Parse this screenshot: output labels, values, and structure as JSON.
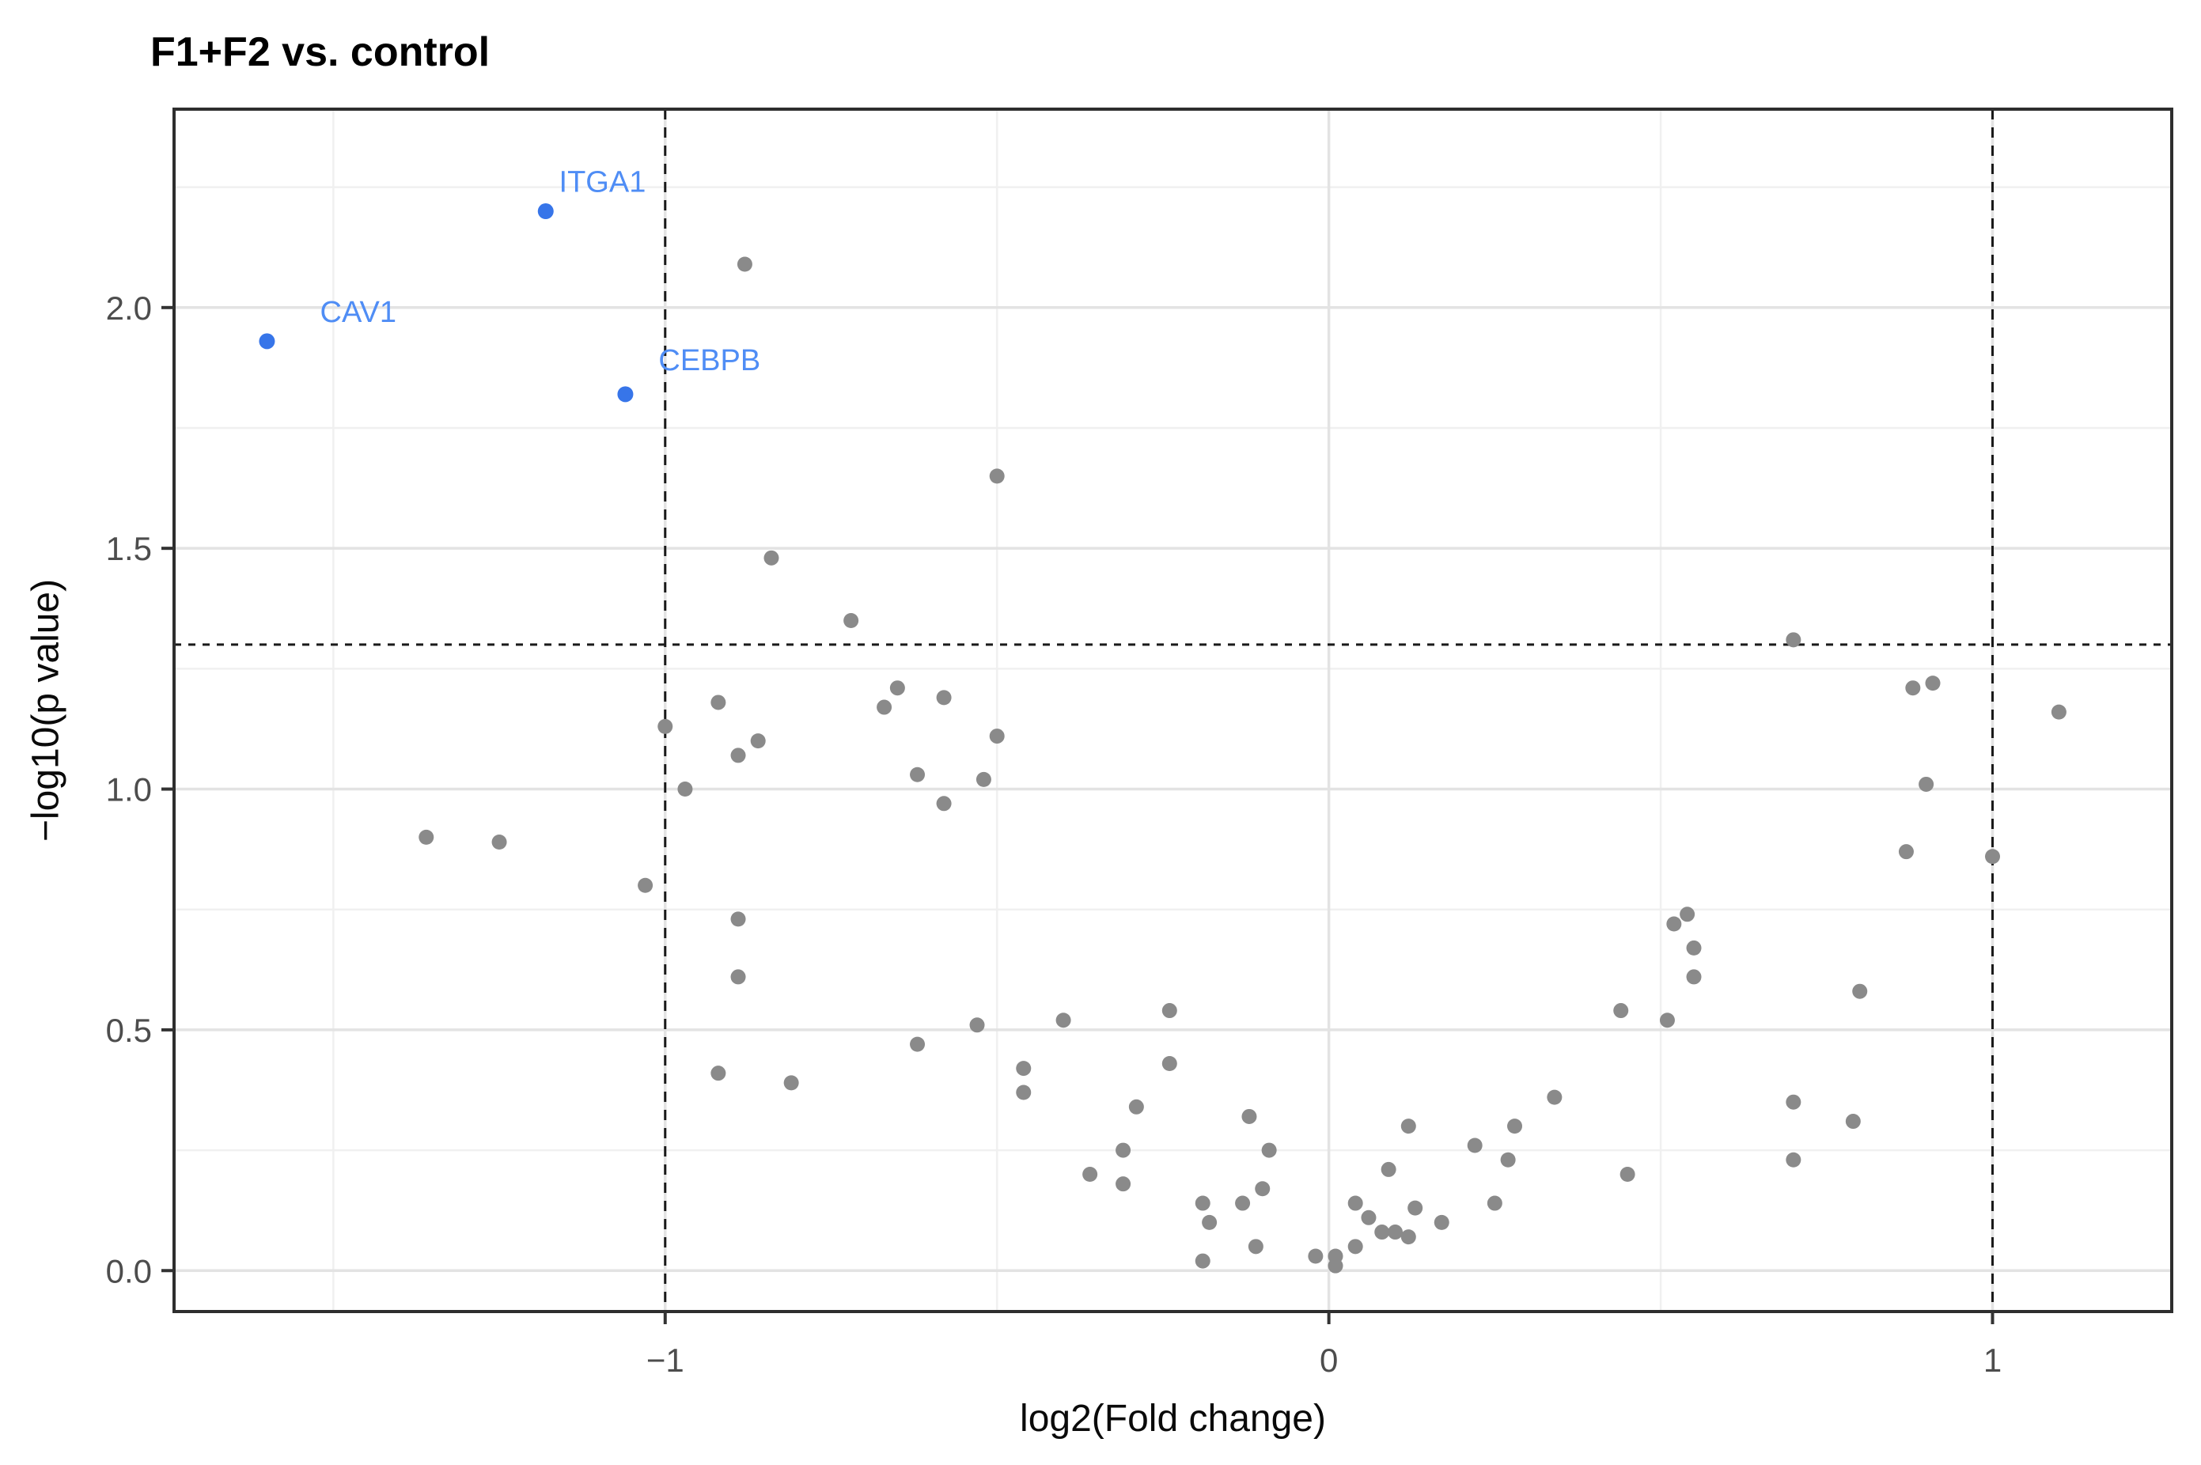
{
  "chart_data": {
    "type": "scatter",
    "title": "F1+F2 vs. control",
    "xlabel": "log2(Fold change)",
    "ylabel": "−log10(p value)",
    "xlim": [
      -1.74,
      1.27
    ],
    "ylim": [
      -0.085,
      2.412
    ],
    "grid": "on",
    "legend": "none",
    "x_ticks": [
      {
        "value": -1,
        "label": "−1"
      },
      {
        "value": 0,
        "label": "0"
      },
      {
        "value": 1,
        "label": "1"
      }
    ],
    "y_ticks": [
      {
        "value": 0.0,
        "label": "0.0"
      },
      {
        "value": 0.5,
        "label": "0.5"
      },
      {
        "value": 1.0,
        "label": "1.0"
      },
      {
        "value": 1.5,
        "label": "1.5"
      },
      {
        "value": 2.0,
        "label": "2.0"
      }
    ],
    "x_minor_grid": [
      -1.5,
      -0.5,
      0.5
    ],
    "y_minor_grid": [
      0.25,
      0.75,
      1.25,
      1.75,
      2.25
    ],
    "threshold_lines": {
      "vertical_x": [
        -1,
        1
      ],
      "horizontal_y": [
        1.3
      ]
    },
    "series": [
      {
        "name": "labeled-significant-genes",
        "point_color": "#3775E9",
        "label_color": "#4F8DF5",
        "points": [
          {
            "gene": "ITGA1",
            "x": -1.18,
            "y": 2.2,
            "label_x": -1.16,
            "label_y": 2.24
          },
          {
            "gene": "CAV1",
            "x": -1.6,
            "y": 1.93,
            "label_x": -1.52,
            "label_y": 1.97
          },
          {
            "gene": "CEBPB",
            "x": -1.06,
            "y": 1.82,
            "label_x": -1.01,
            "label_y": 1.87
          }
        ]
      },
      {
        "name": "background-genes",
        "point_color": "#8A8A8A",
        "points": [
          [
            -0.88,
            2.09
          ],
          [
            -0.5,
            1.65
          ],
          [
            -0.84,
            1.48
          ],
          [
            -0.72,
            1.35
          ],
          [
            0.7,
            1.31
          ],
          [
            -0.65,
            1.21
          ],
          [
            -0.67,
            1.17
          ],
          [
            -0.58,
            1.19
          ],
          [
            -0.92,
            1.18
          ],
          [
            -1.0,
            1.13
          ],
          [
            -0.5,
            1.11
          ],
          [
            -0.86,
            1.1
          ],
          [
            -0.89,
            1.07
          ],
          [
            -0.97,
            1.0
          ],
          [
            -0.62,
            1.03
          ],
          [
            -0.52,
            1.02
          ],
          [
            -0.58,
            0.97
          ],
          [
            0.88,
            1.21
          ],
          [
            0.91,
            1.22
          ],
          [
            1.1,
            1.16
          ],
          [
            0.9,
            1.01
          ],
          [
            -1.03,
            0.8
          ],
          [
            -1.36,
            0.9
          ],
          [
            -1.25,
            0.89
          ],
          [
            -0.89,
            0.73
          ],
          [
            -0.89,
            0.61
          ],
          [
            0.87,
            0.87
          ],
          [
            1.0,
            0.86
          ],
          [
            0.52,
            0.72
          ],
          [
            0.54,
            0.74
          ],
          [
            0.55,
            0.67
          ],
          [
            0.55,
            0.61
          ],
          [
            0.8,
            0.58
          ],
          [
            -0.24,
            0.54
          ],
          [
            -0.53,
            0.51
          ],
          [
            -0.4,
            0.52
          ],
          [
            0.44,
            0.54
          ],
          [
            0.51,
            0.52
          ],
          [
            -0.62,
            0.47
          ],
          [
            -0.92,
            0.41
          ],
          [
            -0.81,
            0.39
          ],
          [
            -0.46,
            0.42
          ],
          [
            -0.46,
            0.37
          ],
          [
            -0.24,
            0.43
          ],
          [
            0.34,
            0.36
          ],
          [
            0.7,
            0.35
          ],
          [
            0.79,
            0.31
          ],
          [
            0.7,
            0.23
          ],
          [
            0.45,
            0.2
          ],
          [
            -0.29,
            0.34
          ],
          [
            -0.12,
            0.32
          ],
          [
            0.12,
            0.3
          ],
          [
            0.28,
            0.3
          ],
          [
            -0.31,
            0.25
          ],
          [
            -0.09,
            0.25
          ],
          [
            0.22,
            0.26
          ],
          [
            0.27,
            0.23
          ],
          [
            -0.36,
            0.2
          ],
          [
            -0.31,
            0.18
          ],
          [
            0.09,
            0.21
          ],
          [
            0.17,
            0.1
          ],
          [
            -0.19,
            0.14
          ],
          [
            -0.13,
            0.14
          ],
          [
            -0.1,
            0.17
          ],
          [
            0.04,
            0.14
          ],
          [
            0.25,
            0.14
          ],
          [
            0.13,
            0.13
          ],
          [
            -0.18,
            0.1
          ],
          [
            0.06,
            0.11
          ],
          [
            0.08,
            0.08
          ],
          [
            0.1,
            0.08
          ],
          [
            0.12,
            0.07
          ],
          [
            -0.11,
            0.05
          ],
          [
            -0.19,
            0.02
          ],
          [
            -0.02,
            0.03
          ],
          [
            0.01,
            0.03
          ],
          [
            0.01,
            0.01
          ],
          [
            0.04,
            0.05
          ]
        ]
      }
    ]
  },
  "style": {
    "background": "#ffffff",
    "panel_border": "#2e2e2e",
    "grid_major": "#e3e3e3",
    "grid_minor": "#f0f0f0",
    "tick_color": "#333333",
    "tick_label_color": "#4d4d4d",
    "threshold_line_color": "#1a1a1a",
    "gray_point": "#8A8A8A",
    "blue_point": "#3775E9",
    "blue_label": "#4F8DF5"
  }
}
